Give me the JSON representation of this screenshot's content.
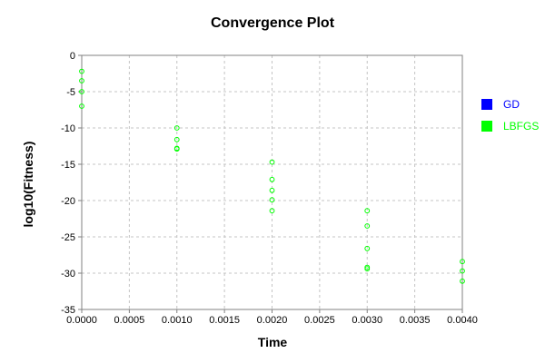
{
  "chart_data": {
    "type": "scatter",
    "title": "Convergence Plot",
    "xlabel": "Time",
    "ylabel": "log10(Fitness)",
    "xlim": [
      0,
      0.004
    ],
    "ylim": [
      -35,
      0
    ],
    "xticks": [
      "0.0000",
      "0.0005",
      "0.0010",
      "0.0015",
      "0.0020",
      "0.0025",
      "0.0030",
      "0.0035",
      "0.0040"
    ],
    "yticks": [
      "0",
      "-5",
      "-10",
      "-15",
      "-20",
      "-25",
      "-30",
      "-35"
    ],
    "grid": true,
    "legend": "right",
    "series": [
      {
        "name": "GD",
        "color": "#0000ff",
        "marker": "square",
        "points": []
      },
      {
        "name": "LBFGS",
        "color": "#00ff00",
        "marker": "circle-open",
        "points": [
          {
            "x": 0.0,
            "y": -2.2
          },
          {
            "x": 0.0,
            "y": -3.5
          },
          {
            "x": 0.0,
            "y": -5.0
          },
          {
            "x": 0.0,
            "y": -7.0
          },
          {
            "x": 0.001,
            "y": -10.0
          },
          {
            "x": 0.001,
            "y": -11.6
          },
          {
            "x": 0.001,
            "y": -12.8
          },
          {
            "x": 0.001,
            "y": -12.9
          },
          {
            "x": 0.002,
            "y": -14.7
          },
          {
            "x": 0.002,
            "y": -17.1
          },
          {
            "x": 0.002,
            "y": -18.6
          },
          {
            "x": 0.002,
            "y": -19.9
          },
          {
            "x": 0.002,
            "y": -21.4
          },
          {
            "x": 0.003,
            "y": -21.4
          },
          {
            "x": 0.003,
            "y": -23.5
          },
          {
            "x": 0.003,
            "y": -26.6
          },
          {
            "x": 0.003,
            "y": -29.2
          },
          {
            "x": 0.003,
            "y": -29.4
          },
          {
            "x": 0.004,
            "y": -28.4
          },
          {
            "x": 0.004,
            "y": -29.7
          },
          {
            "x": 0.004,
            "y": -31.1
          }
        ]
      }
    ]
  }
}
